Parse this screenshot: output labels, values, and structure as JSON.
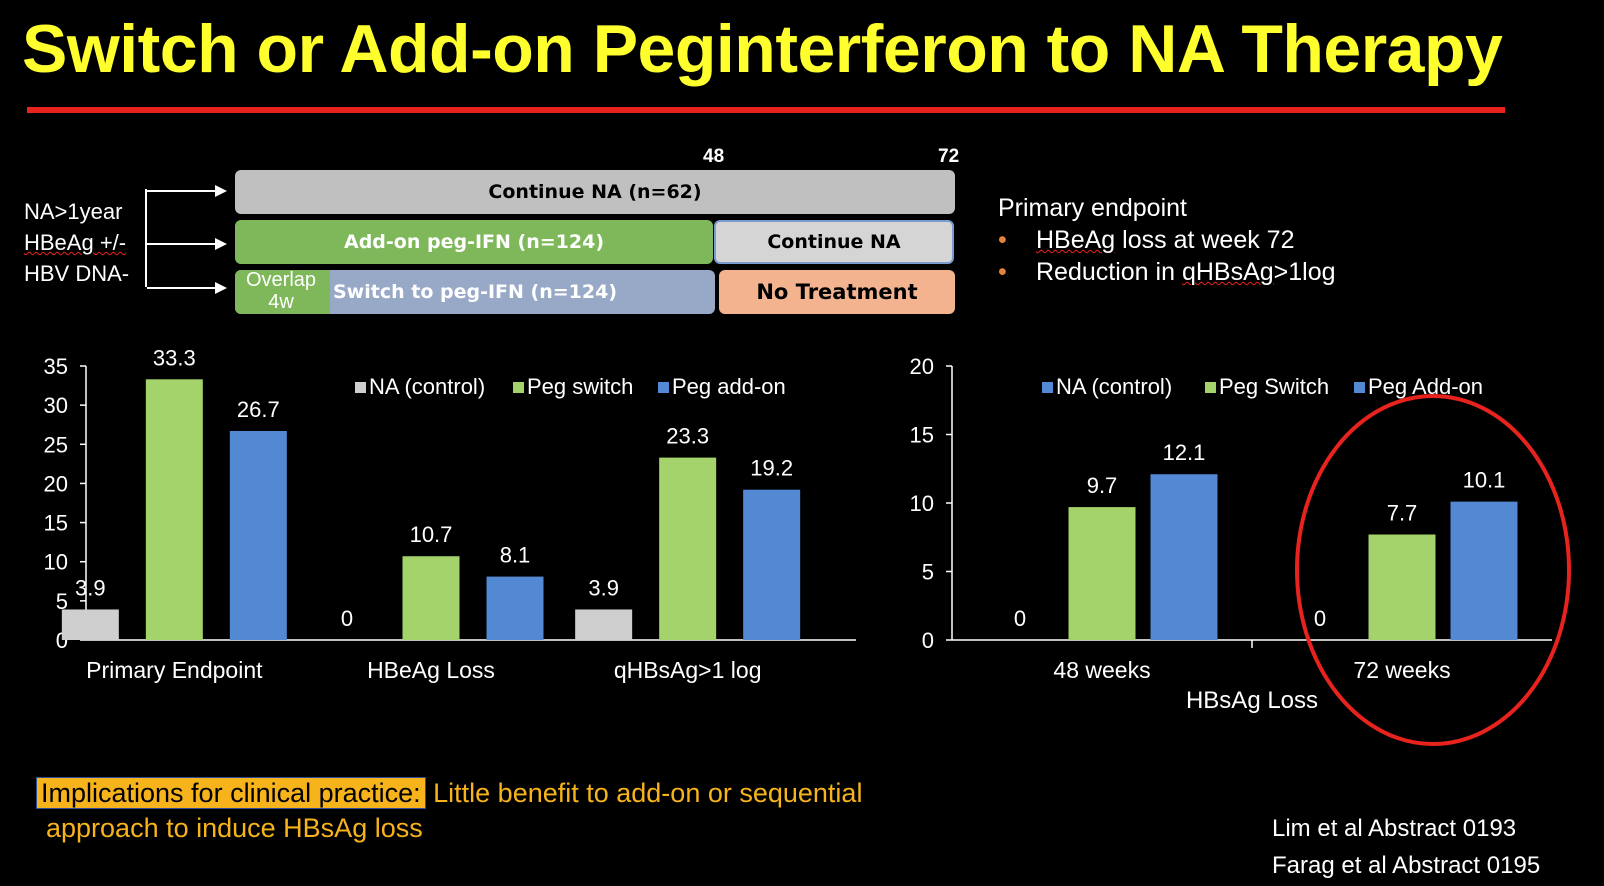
{
  "title": "Switch or Add-on Peginterferon to NA Therapy",
  "design": {
    "week_48": "48",
    "week_72": "72",
    "criteria": [
      "NA>1year",
      "HBeAg +/-",
      "HBV DNA-"
    ],
    "arms": {
      "continue_na": "Continue NA (n=62)",
      "addon": "Add-on peg-IFN (n=124)",
      "addon_after": "Continue NA",
      "overlap_line1": "Overlap",
      "overlap_line2": "4w",
      "switch": "Switch to peg-IFN (n=124)",
      "switch_after": "No Treatment"
    },
    "colors": {
      "continue": "#c0c0c0",
      "addon": "#7fb85a",
      "switch": "#98a9c7",
      "notreat": "#f3b38f"
    }
  },
  "endpoints": {
    "heading": "Primary endpoint",
    "item1_pre": "",
    "item1_squig": "HBeAg",
    "item1_post": " loss at week 72",
    "item2_pre": "Reduction in ",
    "item2_squig": "qHBsAg",
    "item2_post": ">1log"
  },
  "chart_data": [
    {
      "type": "bar",
      "categories": [
        "Primary Endpoint",
        "HBeAg Loss",
        "qHBsAg>1 log"
      ],
      "series": [
        {
          "name": "NA (control)",
          "values": [
            3.9,
            0,
            3.9
          ],
          "color": "#cfcfcf"
        },
        {
          "name": "Peg switch",
          "values": [
            33.3,
            10.7,
            23.3
          ],
          "color": "#a4d36b"
        },
        {
          "name": "Peg add-on",
          "values": [
            26.7,
            8.1,
            19.2
          ],
          "color": "#5388d2"
        }
      ],
      "ylim": [
        0,
        35
      ],
      "yticks": [
        0,
        5,
        10,
        15,
        20,
        25,
        30,
        35
      ],
      "xlabel": "",
      "legend": "top-right",
      "grid": false
    },
    {
      "type": "bar",
      "categories": [
        "48 weeks",
        "72 weeks"
      ],
      "series": [
        {
          "name": "NA (control)",
          "values": [
            0,
            0
          ],
          "color": "#5388d2"
        },
        {
          "name": "Peg Switch",
          "values": [
            9.7,
            7.7
          ],
          "color": "#a4d36b"
        },
        {
          "name": "Peg Add-on",
          "values": [
            12.1,
            10.1
          ],
          "color": "#5388d2"
        }
      ],
      "ylim": [
        0,
        20
      ],
      "yticks": [
        0,
        5,
        10,
        15,
        20
      ],
      "xlabel": "HBsAg Loss",
      "legend": "top",
      "grid": false,
      "highlight": "72 weeks"
    }
  ],
  "implication": {
    "label": "Implications for clinical practice:",
    "text1": " Little benefit to add-on or sequential",
    "text2": "approach to induce HBsAg loss"
  },
  "references": [
    "Lim et al Abstract 0193",
    "Farag et al Abstract 0195"
  ]
}
